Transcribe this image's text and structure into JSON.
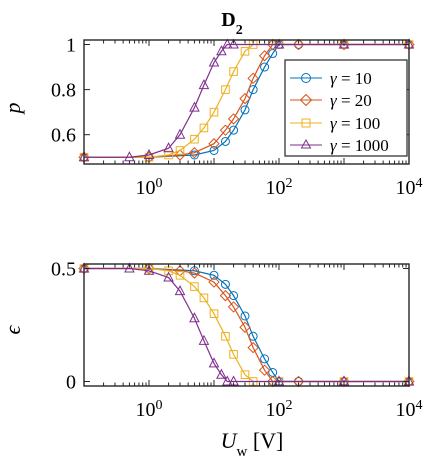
{
  "figure_title": {
    "main": "D",
    "sub": "2"
  },
  "legend": [
    {
      "symbol": "γ",
      "text": " = 10"
    },
    {
      "symbol": "γ",
      "text": " = 20"
    },
    {
      "symbol": "γ",
      "text": " = 100"
    },
    {
      "symbol": "γ",
      "text": " = 1000"
    }
  ],
  "colors": {
    "s10": "#0072BD",
    "s20": "#D95319",
    "s100": "#EDB120",
    "s1000": "#7E2F8E"
  },
  "chart_data": [
    {
      "type": "line",
      "ylabel": "p",
      "xscale": "log",
      "xlim": [
        0.1,
        10000
      ],
      "ylim": [
        0.47,
        1.02
      ],
      "yticks": [
        {
          "value": 0.6,
          "label": "0.6"
        },
        {
          "value": 0.8,
          "label": "0.8"
        },
        {
          "value": 1.0,
          "label": "1"
        }
      ],
      "xticks": [
        {
          "value": 1,
          "base": "10",
          "exp": "0"
        },
        {
          "value": 100,
          "base": "10",
          "exp": "2"
        },
        {
          "value": 10000,
          "base": "10",
          "exp": "4"
        }
      ],
      "legend_position": "right",
      "series": [
        {
          "name": "γ = 10",
          "marker": "circle",
          "color": "#0072BD",
          "x": [
            0.1,
            1,
            5,
            10,
            15,
            20,
            30,
            40,
            60,
            80,
            100,
            200,
            1000,
            10000
          ],
          "y": [
            0.5,
            0.5,
            0.51,
            0.53,
            0.57,
            0.62,
            0.71,
            0.8,
            0.9,
            0.96,
            1.0,
            1.0,
            1.0,
            1.0
          ]
        },
        {
          "name": "γ = 20",
          "marker": "diamond",
          "color": "#D95319",
          "x": [
            0.1,
            1,
            3,
            5,
            10,
            15,
            20,
            30,
            40,
            60,
            80,
            200,
            1000,
            10000
          ],
          "y": [
            0.5,
            0.5,
            0.51,
            0.52,
            0.56,
            0.62,
            0.67,
            0.76,
            0.85,
            0.95,
            1.0,
            1.0,
            1.0,
            1.0
          ]
        },
        {
          "name": "γ = 100",
          "marker": "square",
          "color": "#EDB120",
          "x": [
            0.1,
            1,
            2,
            3,
            5,
            7,
            10,
            15,
            20,
            30,
            40,
            100,
            1000,
            10000
          ],
          "y": [
            0.5,
            0.5,
            0.51,
            0.53,
            0.58,
            0.63,
            0.7,
            0.8,
            0.88,
            0.97,
            1.0,
            1.0,
            1.0,
            1.0
          ]
        },
        {
          "name": "γ = 1000",
          "marker": "triangle",
          "color": "#7E2F8E",
          "x": [
            0.1,
            0.5,
            1,
            2,
            3,
            5,
            7,
            10,
            13,
            16,
            20,
            100,
            1000,
            10000
          ],
          "y": [
            0.5,
            0.5,
            0.51,
            0.54,
            0.6,
            0.72,
            0.82,
            0.92,
            0.97,
            1.0,
            1.0,
            1.0,
            1.0,
            1.0
          ]
        }
      ]
    },
    {
      "type": "line",
      "ylabel": "ϵ",
      "xlabel_main": "U",
      "xlabel_sub": "w",
      "xlabel_unit": " [V]",
      "xscale": "log",
      "xlim": [
        0.1,
        10000
      ],
      "ylim": [
        -0.02,
        0.52
      ],
      "yticks": [
        {
          "value": 0,
          "label": "0"
        },
        {
          "value": 0.5,
          "label": "0.5"
        }
      ],
      "xticks": [
        {
          "value": 1,
          "base": "10",
          "exp": "0"
        },
        {
          "value": 100,
          "base": "10",
          "exp": "2"
        },
        {
          "value": 10000,
          "base": "10",
          "exp": "4"
        }
      ],
      "series": [
        {
          "name": "γ = 10",
          "marker": "circle",
          "color": "#0072BD",
          "x": [
            0.1,
            1,
            5,
            10,
            15,
            20,
            30,
            40,
            60,
            80,
            100,
            200,
            1000,
            10000
          ],
          "y": [
            0.5,
            0.5,
            0.49,
            0.47,
            0.43,
            0.38,
            0.29,
            0.2,
            0.1,
            0.04,
            0.0,
            0.0,
            0.0,
            0.0
          ]
        },
        {
          "name": "γ = 20",
          "marker": "diamond",
          "color": "#D95319",
          "x": [
            0.1,
            1,
            3,
            5,
            10,
            15,
            20,
            30,
            40,
            60,
            80,
            200,
            1000,
            10000
          ],
          "y": [
            0.5,
            0.5,
            0.49,
            0.48,
            0.44,
            0.38,
            0.33,
            0.24,
            0.15,
            0.05,
            0.0,
            0.0,
            0.0,
            0.0
          ]
        },
        {
          "name": "γ = 100",
          "marker": "square",
          "color": "#EDB120",
          "x": [
            0.1,
            1,
            2,
            3,
            5,
            7,
            10,
            15,
            20,
            30,
            40,
            100,
            1000,
            10000
          ],
          "y": [
            0.5,
            0.5,
            0.49,
            0.47,
            0.42,
            0.37,
            0.3,
            0.2,
            0.12,
            0.03,
            0.0,
            0.0,
            0.0,
            0.0
          ]
        },
        {
          "name": "γ = 1000",
          "marker": "triangle",
          "color": "#7E2F8E",
          "x": [
            0.1,
            0.5,
            1,
            2,
            3,
            5,
            7,
            10,
            13,
            16,
            20,
            100,
            1000,
            10000
          ],
          "y": [
            0.5,
            0.5,
            0.49,
            0.46,
            0.4,
            0.28,
            0.18,
            0.08,
            0.03,
            0.0,
            0.0,
            0.0,
            0.0,
            0.0
          ]
        }
      ]
    }
  ]
}
